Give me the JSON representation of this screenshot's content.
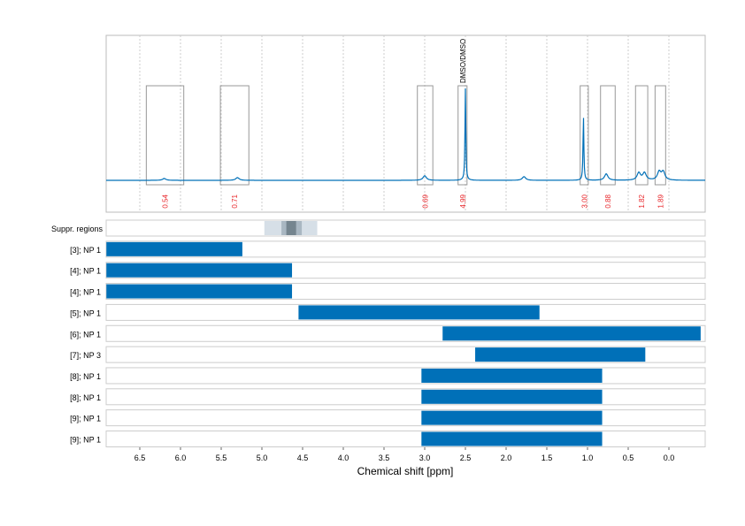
{
  "chart_data": {
    "type": "line",
    "xlabel": "Chemical shift [ppm]",
    "xlim": [
      6.91,
      -0.45
    ],
    "xticks": [
      6.5,
      6.0,
      5.5,
      5.0,
      4.5,
      4.0,
      3.5,
      3.0,
      2.5,
      2.0,
      1.5,
      1.0,
      0.5,
      0.0
    ],
    "xtick_labels": [
      "6.5",
      "6.0",
      "5.5",
      "5.0",
      "4.5",
      "4.0",
      "3.5",
      "3.0",
      "2.5",
      "2.0",
      "1.5",
      "1.0",
      "0.5",
      "0.0"
    ],
    "grid": true,
    "color": "#0070b8",
    "peaks": [
      {
        "ppm": 6.2,
        "height": 0.02
      },
      {
        "ppm": 5.3,
        "height": 0.03
      },
      {
        "ppm": 3.0,
        "height": 0.05
      },
      {
        "ppm": 2.5,
        "height": 1.0
      },
      {
        "ppm": 1.78,
        "height": 0.04
      },
      {
        "ppm": 1.05,
        "height": 0.7
      },
      {
        "ppm": 0.77,
        "height": 0.07
      },
      {
        "ppm": 0.37,
        "height": 0.08
      },
      {
        "ppm": 0.3,
        "height": 0.08
      },
      {
        "ppm": 0.12,
        "height": 0.09
      },
      {
        "ppm": 0.07,
        "height": 0.09
      }
    ],
    "integrals": [
      {
        "from": 6.42,
        "to": 5.96,
        "value": "0.54"
      },
      {
        "from": 5.51,
        "to": 5.16,
        "value": "0.71"
      },
      {
        "from": 3.09,
        "to": 2.9,
        "value": "0.69"
      },
      {
        "from": 2.59,
        "to": 2.48,
        "value": "4.99",
        "annotation": "DMSO/DMSO"
      },
      {
        "from": 1.09,
        "to": 0.99,
        "value": "3.00"
      },
      {
        "from": 0.84,
        "to": 0.66,
        "value": "0.88"
      },
      {
        "from": 0.41,
        "to": 0.26,
        "value": "1.82"
      },
      {
        "from": 0.17,
        "to": 0.04,
        "value": "1.89"
      }
    ],
    "suppression": {
      "label": "Suppr. regions",
      "regions": [
        [
          4.97,
          4.32
        ],
        [
          4.76,
          4.51
        ],
        [
          4.7,
          4.58
        ]
      ]
    },
    "ranges": [
      {
        "label": "[3]; NP 1",
        "from": 6.91,
        "to": 5.24
      },
      {
        "label": "[4]; NP 1",
        "from": 6.91,
        "to": 4.63
      },
      {
        "label": "[4]; NP 1",
        "from": 6.91,
        "to": 4.63
      },
      {
        "label": "[5]; NP 1",
        "from": 4.55,
        "to": 1.59
      },
      {
        "label": "[6]; NP 1",
        "from": 2.78,
        "to": -0.39
      },
      {
        "label": "[7]; NP 3",
        "from": 2.38,
        "to": 0.29
      },
      {
        "label": "[8]; NP 1",
        "from": 3.04,
        "to": 0.82
      },
      {
        "label": "[8]; NP 1",
        "from": 3.04,
        "to": 0.82
      },
      {
        "label": "[9]; NP 1",
        "from": 3.04,
        "to": 0.82
      },
      {
        "label": "[9]; NP 1",
        "from": 3.04,
        "to": 0.82
      }
    ]
  }
}
